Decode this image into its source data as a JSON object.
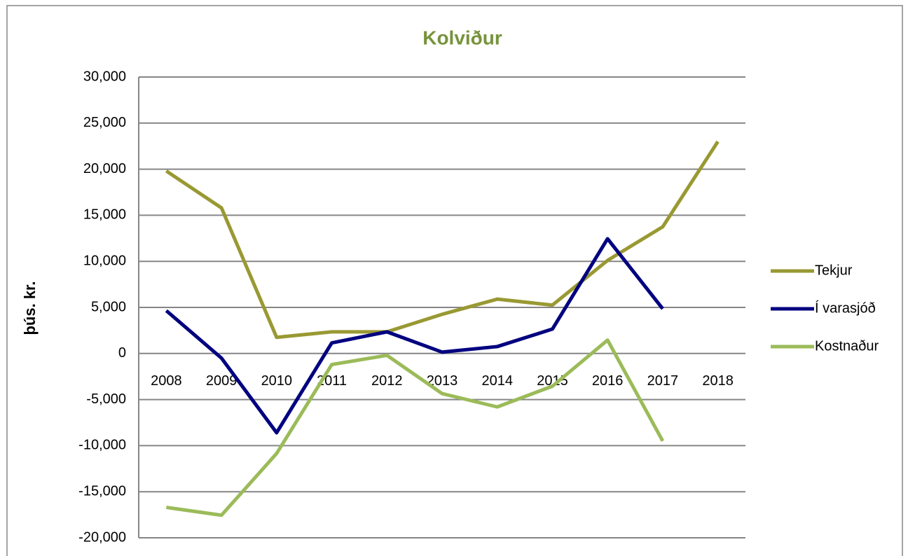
{
  "chart_data": {
    "type": "line",
    "title": "Kolviður",
    "y_label": "þús. kr.",
    "categories": [
      "2008",
      "2009",
      "2010",
      "2011",
      "2012",
      "2013",
      "2014",
      "2015",
      "2016",
      "2017",
      "2018"
    ],
    "series": [
      {
        "name": "Tekjur",
        "color": "#999933",
        "values": [
          19800,
          15800,
          1750,
          2350,
          2350,
          4250,
          5900,
          5250,
          10100,
          13750,
          23000
        ]
      },
      {
        "name": "Í varasjóð",
        "color": "#000080",
        "values": [
          4650,
          -500,
          -8600,
          1150,
          2350,
          150,
          750,
          2650,
          12450,
          4850,
          null
        ]
      },
      {
        "name": "Kostnaður",
        "color": "#9bbb59",
        "values": [
          -16700,
          -17550,
          -10850,
          -1200,
          -200,
          -4350,
          -5800,
          -3550,
          1450,
          -9500,
          null
        ]
      }
    ],
    "ylim": [
      -20000,
      30000
    ],
    "yticks": [
      {
        "value": -20000,
        "label": "-20,000"
      },
      {
        "value": -15000,
        "label": "-15,000"
      },
      {
        "value": -10000,
        "label": "-10,000"
      },
      {
        "value": -5000,
        "label": "-5,000"
      },
      0,
      {
        "value": 5000,
        "label": "5,000"
      },
      {
        "value": 10000,
        "label": "10,000"
      },
      {
        "value": 15000,
        "label": "15,000"
      },
      {
        "value": 20000,
        "label": "20,000"
      },
      {
        "value": 25000,
        "label": "25,000"
      },
      {
        "value": 30000,
        "label": "30,000"
      }
    ],
    "grid": true,
    "legend": "right"
  }
}
